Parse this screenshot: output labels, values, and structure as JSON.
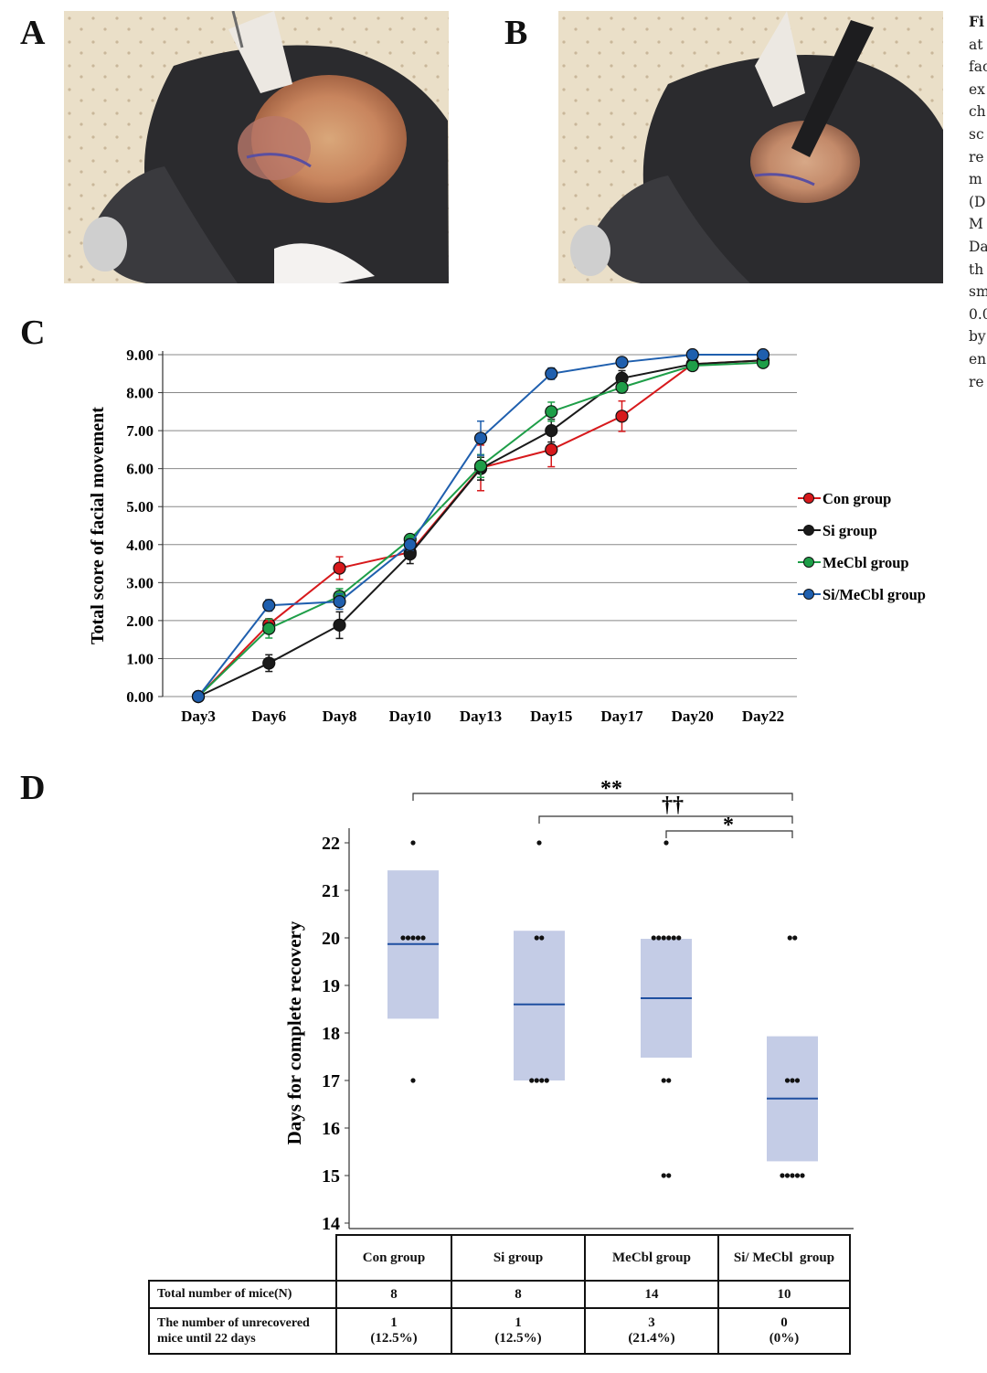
{
  "panels": {
    "a": "A",
    "b": "B",
    "c": "C",
    "d": "D"
  },
  "caption_fragments": [
    "Fi",
    "at",
    "fac",
    "ex",
    "ch",
    "sc",
    "re",
    "m",
    "(D",
    "M",
    "Da",
    "th",
    "sm",
    "0.0",
    "by",
    "en",
    "re"
  ],
  "chart_data": [
    {
      "type": "line",
      "ylabel": "Total score of facial movement",
      "categories": [
        "Day3",
        "Day6",
        "Day8",
        "Day10",
        "Day13",
        "Day15",
        "Day17",
        "Day20",
        "Day22"
      ],
      "ylim": [
        0,
        9
      ],
      "yticks": [
        "0.00",
        "1.00",
        "2.00",
        "3.00",
        "4.00",
        "5.00",
        "6.00",
        "7.00",
        "8.00",
        "9.00"
      ],
      "grid": true,
      "legend": "right",
      "series": [
        {
          "name": "Con group",
          "color": "#d7191c",
          "values": [
            0,
            1.9,
            3.38,
            3.8,
            6.02,
            6.5,
            7.38,
            8.75,
            8.85
          ],
          "err": [
            0,
            0.15,
            0.3,
            0.1,
            0.6,
            0.45,
            0.4,
            0.05,
            0.05
          ]
        },
        {
          "name": "Si group",
          "color": "#1a1a1a",
          "values": [
            0,
            0.88,
            1.88,
            3.75,
            6.0,
            7.0,
            8.38,
            8.75,
            8.85
          ],
          "err": [
            0,
            0.22,
            0.35,
            0.25,
            0.3,
            0.3,
            0.2,
            0.05,
            0.05
          ]
        },
        {
          "name": "MeCbl group",
          "color": "#1e9e48",
          "values": [
            0,
            1.79,
            2.64,
            4.14,
            6.07,
            7.5,
            8.14,
            8.71,
            8.79
          ],
          "err": [
            0,
            0.25,
            0.2,
            0.1,
            0.3,
            0.25,
            0.15,
            0.08,
            0.08
          ]
        },
        {
          "name": "Si/MeCbl group",
          "color": "#1f5fae",
          "values": [
            0,
            2.4,
            2.5,
            4.0,
            6.8,
            8.5,
            8.8,
            9.0,
            9.0
          ],
          "err": [
            0,
            0.15,
            0.2,
            0.15,
            0.45,
            0.15,
            0.1,
            0,
            0
          ]
        }
      ]
    },
    {
      "type": "box",
      "ylabel": "Days for complete recovery",
      "ylim": [
        14,
        22
      ],
      "yticks": [
        "14",
        "15",
        "16",
        "17",
        "18",
        "19",
        "20",
        "21",
        "22"
      ],
      "groups": [
        {
          "name": "Con group",
          "mean": 19.87,
          "box": [
            18.3,
            21.42
          ],
          "points": [
            {
              "y": 22,
              "n": 1
            },
            {
              "y": 20,
              "n": 5
            },
            {
              "y": 17,
              "n": 1
            }
          ]
        },
        {
          "name": "Si group",
          "mean": 18.6,
          "box": [
            17.0,
            20.15
          ],
          "points": [
            {
              "y": 22,
              "n": 1
            },
            {
              "y": 20,
              "n": 2
            },
            {
              "y": 17,
              "n": 4
            }
          ]
        },
        {
          "name": "MeCbl group",
          "mean": 18.73,
          "box": [
            17.48,
            19.98
          ],
          "points": [
            {
              "y": 22,
              "n": 1
            },
            {
              "y": 20,
              "n": 6
            },
            {
              "y": 17,
              "n": 2
            },
            {
              "y": 15,
              "n": 2
            }
          ]
        },
        {
          "name": "Si/MeCbl group",
          "mean": 16.62,
          "box": [
            15.3,
            17.93
          ],
          "points": [
            {
              "y": 20,
              "n": 2
            },
            {
              "y": 17,
              "n": 3
            },
            {
              "y": 15,
              "n": 5
            }
          ]
        }
      ],
      "significance": [
        "**",
        "††",
        "*"
      ],
      "box_color": "#c4cce6",
      "mean_color": "#1f4fa0"
    }
  ],
  "table": {
    "headers": [
      "Con group",
      "Si group",
      "MeCbl group",
      "Si/ MeCbl  group"
    ],
    "row1_label": "Total number of mice(N)",
    "row1": [
      "8",
      "8",
      "14",
      "10"
    ],
    "row2_label_line1": "The number of unrecovered",
    "row2_label_line2": "mice until 22 days",
    "row2_counts": [
      "1",
      "1",
      "3",
      "0"
    ],
    "row2_pcts": [
      "(12.5%)",
      "(12.5%)",
      "(21.4%)",
      "(0%)"
    ]
  }
}
